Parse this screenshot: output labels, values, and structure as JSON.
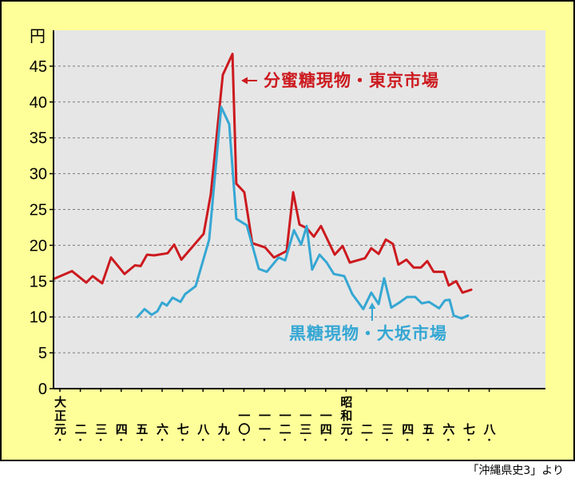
{
  "chart_data": {
    "type": "line",
    "ylabel": "円",
    "ylim": [
      0,
      50
    ],
    "yticks": [
      0,
      5,
      10,
      15,
      20,
      25,
      30,
      35,
      40,
      45
    ],
    "grid": true,
    "x_tick_labels": [
      "大正元",
      "二",
      "三",
      "四",
      "五",
      "六",
      "七",
      "八",
      "九",
      "一〇",
      "一一",
      "一二",
      "一三",
      "一四",
      "昭和元",
      "二",
      "三",
      "四",
      "五",
      "六",
      "七",
      "八"
    ],
    "x_tick_marker": "・",
    "series": [
      {
        "name": "分蜜糖現物・東京市場",
        "color": "#cc1a1f",
        "points": [
          [
            -0.31,
            15.3
          ],
          [
            0.59,
            16.4
          ],
          [
            1.29,
            14.8
          ],
          [
            1.6,
            15.7
          ],
          [
            2.07,
            14.7
          ],
          [
            2.5,
            18.3
          ],
          [
            3.16,
            16.0
          ],
          [
            3.67,
            17.2
          ],
          [
            3.95,
            17.1
          ],
          [
            4.26,
            18.7
          ],
          [
            4.61,
            18.6
          ],
          [
            5.27,
            18.9
          ],
          [
            5.59,
            20.1
          ],
          [
            5.94,
            18.0
          ],
          [
            7.03,
            21.6
          ],
          [
            7.38,
            27.1
          ],
          [
            7.97,
            43.8
          ],
          [
            8.44,
            46.7
          ],
          [
            8.63,
            28.6
          ],
          [
            9.02,
            27.4
          ],
          [
            9.41,
            20.3
          ],
          [
            10.04,
            19.7
          ],
          [
            10.47,
            18.3
          ],
          [
            11.09,
            19.2
          ],
          [
            11.41,
            27.4
          ],
          [
            11.72,
            22.9
          ],
          [
            12.07,
            22.4
          ],
          [
            12.42,
            21.2
          ],
          [
            12.77,
            22.7
          ],
          [
            13.44,
            18.7
          ],
          [
            13.83,
            19.9
          ],
          [
            14.18,
            17.6
          ],
          [
            14.92,
            18.2
          ],
          [
            15.23,
            19.6
          ],
          [
            15.59,
            18.8
          ],
          [
            15.94,
            20.8
          ],
          [
            16.29,
            20.2
          ],
          [
            16.56,
            17.3
          ],
          [
            16.95,
            18.0
          ],
          [
            17.3,
            16.9
          ],
          [
            17.66,
            16.9
          ],
          [
            17.97,
            17.8
          ],
          [
            18.28,
            16.3
          ],
          [
            18.79,
            16.3
          ],
          [
            19.02,
            14.4
          ],
          [
            19.38,
            15.0
          ],
          [
            19.69,
            13.4
          ],
          [
            20.12,
            13.8
          ]
        ]
      },
      {
        "name": "黒糖現物・大坂市場",
        "color": "#35a7d3",
        "points": [
          [
            3.79,
            10.0
          ],
          [
            4.14,
            11.1
          ],
          [
            4.49,
            10.3
          ],
          [
            4.77,
            10.8
          ],
          [
            5.0,
            12.0
          ],
          [
            5.23,
            11.6
          ],
          [
            5.51,
            12.7
          ],
          [
            5.9,
            12.1
          ],
          [
            6.13,
            13.2
          ],
          [
            6.64,
            14.3
          ],
          [
            7.3,
            20.8
          ],
          [
            7.89,
            39.3
          ],
          [
            8.28,
            36.9
          ],
          [
            8.63,
            23.7
          ],
          [
            9.14,
            22.8
          ],
          [
            9.41,
            20.0
          ],
          [
            9.73,
            16.7
          ],
          [
            10.12,
            16.3
          ],
          [
            10.7,
            18.3
          ],
          [
            11.02,
            17.9
          ],
          [
            11.45,
            22.1
          ],
          [
            11.8,
            20.1
          ],
          [
            12.07,
            22.7
          ],
          [
            12.34,
            16.6
          ],
          [
            12.7,
            18.7
          ],
          [
            13.05,
            17.6
          ],
          [
            13.4,
            16.0
          ],
          [
            13.91,
            15.7
          ],
          [
            14.3,
            13.2
          ],
          [
            14.84,
            11.1
          ],
          [
            15.23,
            13.4
          ],
          [
            15.59,
            11.8
          ],
          [
            15.86,
            15.4
          ],
          [
            16.21,
            11.3
          ],
          [
            16.6,
            12.0
          ],
          [
            16.99,
            12.8
          ],
          [
            17.38,
            12.8
          ],
          [
            17.7,
            11.9
          ],
          [
            18.05,
            12.1
          ],
          [
            18.55,
            11.2
          ],
          [
            18.83,
            12.3
          ],
          [
            19.06,
            12.4
          ],
          [
            19.26,
            10.2
          ],
          [
            19.65,
            9.8
          ],
          [
            19.96,
            10.2
          ]
        ]
      }
    ]
  },
  "colors": {
    "frame_background": "#ffff99",
    "plot_background": "#e6e6e6",
    "gridline": "#7a7a7a",
    "axis": "#000000"
  },
  "source_note": "「沖縄県史3」より"
}
